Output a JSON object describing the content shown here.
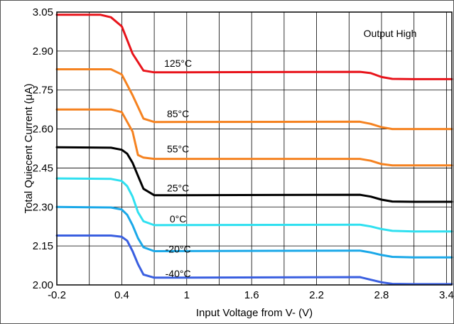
{
  "chart_data": {
    "type": "line",
    "title": "",
    "xlabel": "Input Voltage from V- (V)",
    "ylabel": "Total Quiecent Current (μA)",
    "xlim": [
      -0.2,
      3.45
    ],
    "ylim": [
      2.0,
      3.05
    ],
    "x_ticks": [
      -0.2,
      0.4,
      1,
      1.6,
      2.2,
      2.8,
      3.4
    ],
    "x_tick_labels": [
      "-0.2",
      "0.4",
      "1",
      "1.6",
      "2.2",
      "2.8",
      "3.4"
    ],
    "y_ticks": [
      2.0,
      2.15,
      2.3,
      2.45,
      2.6,
      2.75,
      2.9,
      3.05
    ],
    "y_tick_labels": [
      "2.00",
      "2.15",
      "2.30",
      "2.45",
      "2.60",
      "2.75",
      "2.90",
      "3.05"
    ],
    "x_grid": [
      0.1,
      0.4,
      0.7,
      1.0,
      1.3,
      1.6,
      1.9,
      2.2,
      2.5,
      2.8,
      3.1,
      3.4
    ],
    "y_grid": [
      2.15,
      2.3,
      2.45,
      2.6,
      2.75,
      2.9
    ],
    "grid": true,
    "annotation": "Output High",
    "series": [
      {
        "name": "125°C",
        "color": "#e8141b",
        "label_at": [
          0.92,
          2.84
        ],
        "x": [
          -0.2,
          0.2,
          0.3,
          0.4,
          0.5,
          0.6,
          0.7,
          2.6,
          2.7,
          2.8,
          2.9,
          3.1,
          3.45
        ],
        "y": [
          3.04,
          3.04,
          3.03,
          2.995,
          2.89,
          2.825,
          2.818,
          2.82,
          2.815,
          2.8,
          2.793,
          2.792,
          2.792
        ]
      },
      {
        "name": "85°C",
        "color": "#f58220",
        "label_at": [
          0.92,
          2.645
        ],
        "x": [
          -0.2,
          0.3,
          0.4,
          0.5,
          0.6,
          0.7,
          2.6,
          2.7,
          2.8,
          2.9,
          3.1,
          3.45
        ],
        "y": [
          2.83,
          2.83,
          2.81,
          2.73,
          2.64,
          2.627,
          2.628,
          2.62,
          2.607,
          2.6,
          2.6,
          2.6
        ]
      },
      {
        "name": "55°C",
        "color": "#f58220",
        "label_at": [
          0.92,
          2.51
        ],
        "x": [
          -0.2,
          0.3,
          0.4,
          0.5,
          0.55,
          0.6,
          0.7,
          2.6,
          2.7,
          2.8,
          2.9,
          3.1,
          3.45
        ],
        "y": [
          2.675,
          2.675,
          2.665,
          2.59,
          2.5,
          2.49,
          2.485,
          2.485,
          2.478,
          2.465,
          2.46,
          2.46,
          2.46
        ]
      },
      {
        "name": "25°C",
        "color": "#000000",
        "label_at": [
          0.92,
          2.36
        ],
        "x": [
          -0.2,
          0.3,
          0.4,
          0.45,
          0.5,
          0.55,
          0.6,
          0.7,
          2.6,
          2.7,
          2.8,
          2.9,
          3.1,
          3.45
        ],
        "y": [
          2.53,
          2.528,
          2.52,
          2.505,
          2.47,
          2.42,
          2.37,
          2.345,
          2.347,
          2.34,
          2.328,
          2.321,
          2.32,
          2.32
        ]
      },
      {
        "name": "0°C",
        "color": "#2fe0f0",
        "label_at": [
          0.92,
          2.24
        ],
        "x": [
          -0.2,
          0.3,
          0.4,
          0.45,
          0.5,
          0.55,
          0.6,
          0.7,
          2.6,
          2.7,
          2.8,
          2.9,
          3.1,
          3.45
        ],
        "y": [
          2.41,
          2.408,
          2.4,
          2.38,
          2.34,
          2.28,
          2.245,
          2.23,
          2.232,
          2.225,
          2.215,
          2.208,
          2.206,
          2.206
        ]
      },
      {
        "name": "-20°C",
        "color": "#1aa8e8",
        "label_at": [
          0.92,
          2.125
        ],
        "x": [
          -0.2,
          0.3,
          0.4,
          0.45,
          0.5,
          0.55,
          0.6,
          0.7,
          2.6,
          2.7,
          2.8,
          2.9,
          3.1,
          3.45
        ],
        "y": [
          2.3,
          2.298,
          2.29,
          2.27,
          2.23,
          2.18,
          2.145,
          2.13,
          2.132,
          2.125,
          2.115,
          2.108,
          2.106,
          2.106
        ]
      },
      {
        "name": "-40°C",
        "color": "#3a5fe0",
        "label_at": [
          0.92,
          2.03
        ],
        "x": [
          -0.2,
          0.3,
          0.4,
          0.45,
          0.5,
          0.55,
          0.6,
          0.7,
          2.6,
          2.7,
          2.8,
          2.9,
          3.1,
          3.45
        ],
        "y": [
          2.19,
          2.19,
          2.185,
          2.17,
          2.13,
          2.08,
          2.04,
          2.028,
          2.03,
          2.02,
          2.01,
          2.004,
          2.003,
          2.003
        ]
      }
    ]
  }
}
